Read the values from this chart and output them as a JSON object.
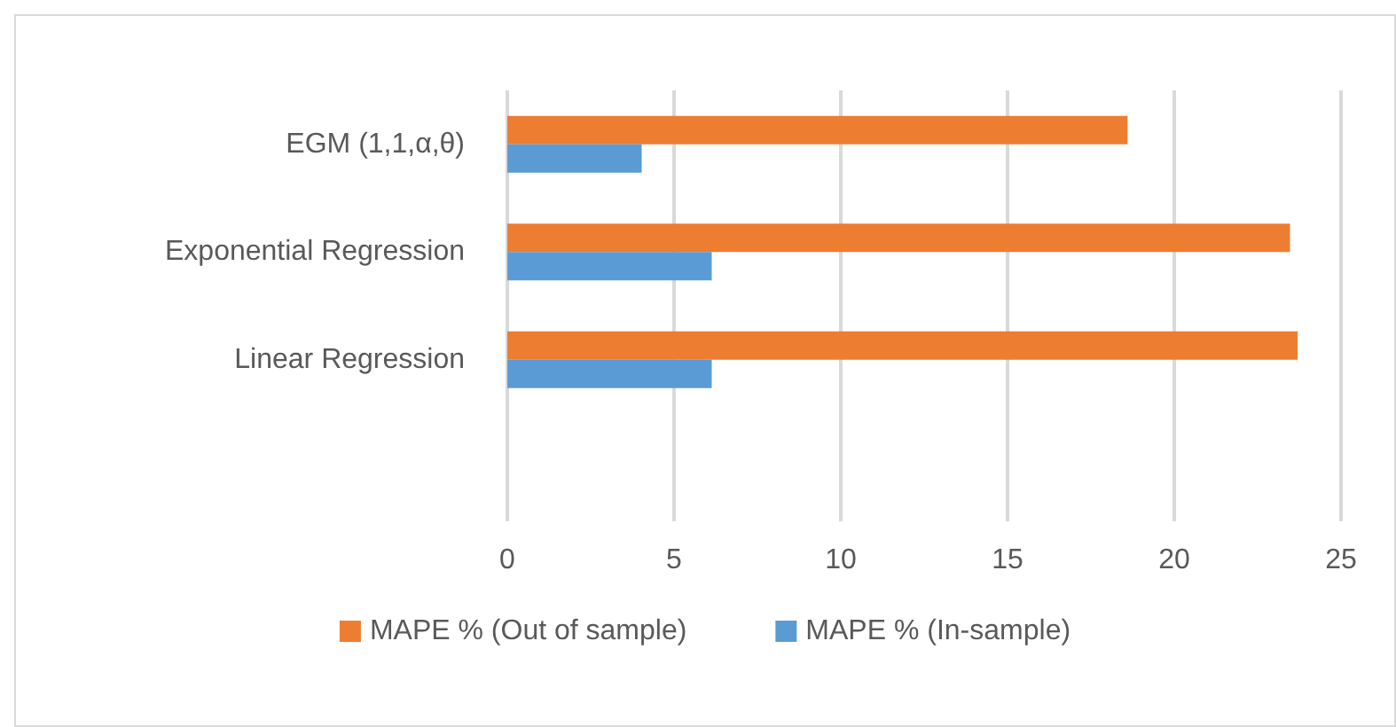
{
  "chart_data": {
    "type": "bar",
    "orientation": "horizontal",
    "categories": [
      "EGM (1,1,α,θ)",
      "Exponential Regression",
      "Linear Regression",
      null
    ],
    "series": [
      {
        "name": "MAPE % (Out of sample)",
        "color": "#ed7d31",
        "values": [
          18.6,
          23.47,
          23.7,
          null
        ]
      },
      {
        "name": "MAPE % (In-sample)",
        "color": "#5b9bd5",
        "values": [
          4.03,
          6.13,
          6.13,
          null
        ]
      }
    ],
    "xlim": [
      0,
      25
    ],
    "xticks": [
      0,
      5,
      10,
      15,
      20,
      25
    ],
    "grid": "x",
    "legend": "bottom"
  }
}
